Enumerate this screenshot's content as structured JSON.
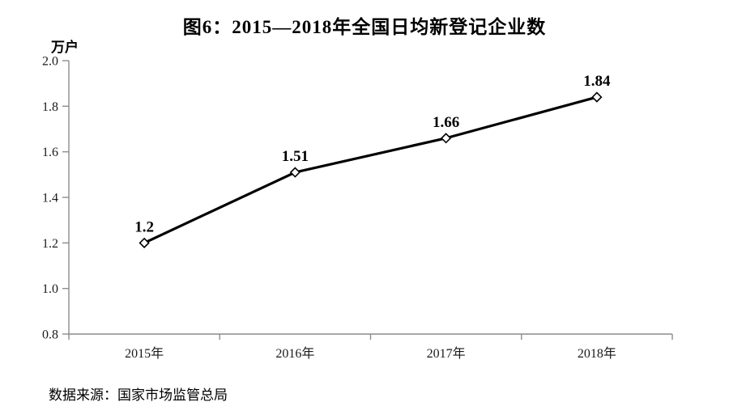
{
  "title": "图6：2015—2018年全国日均新登记企业数",
  "y_unit": "万户",
  "source": "数据来源：国家市场监管总局",
  "chart_data": {
    "type": "line",
    "title": "图6：2015—2018年全国日均新登记企业数",
    "categories": [
      "2015年",
      "2016年",
      "2017年",
      "2018年"
    ],
    "values": [
      1.2,
      1.51,
      1.66,
      1.84
    ],
    "point_labels": [
      "1.2",
      "1.51",
      "1.66",
      "1.84"
    ],
    "xlabel": "",
    "ylabel": "万户",
    "ylim": [
      0.8,
      2.0
    ],
    "ytick_labels": [
      "2.0",
      "1.8",
      "1.6",
      "1.4",
      "1.2",
      "1.0",
      "0.8"
    ],
    "grid": false,
    "legend": "none",
    "line_color": "#000000",
    "marker": "diamond-open",
    "marker_fill": "#ffffff",
    "axis_color": "#8c8c8c",
    "text_color": "#1a1a1a"
  }
}
